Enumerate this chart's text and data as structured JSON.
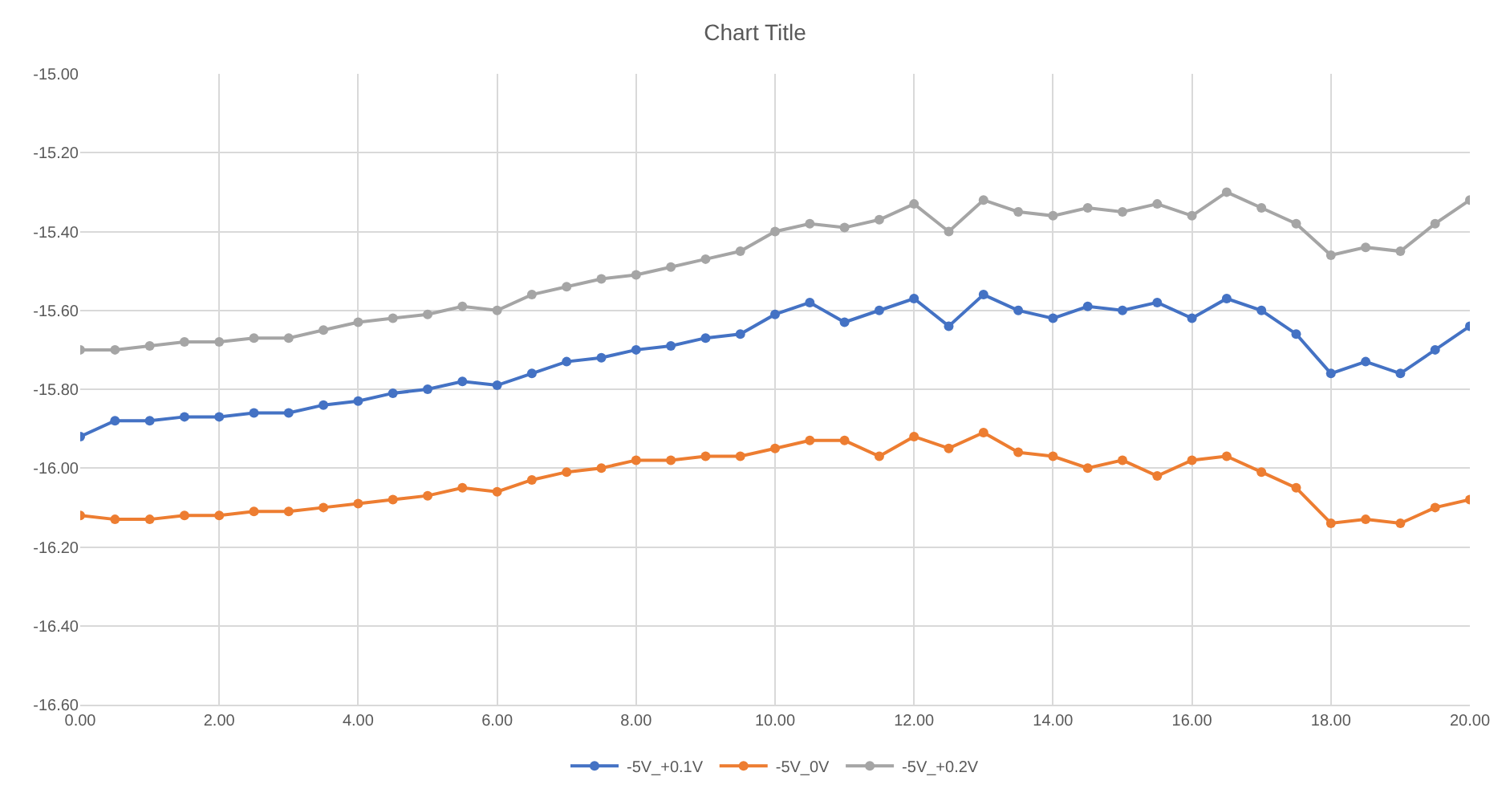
{
  "chart_data": {
    "type": "line",
    "title": "Chart Title",
    "x": [
      0,
      0.5,
      1,
      1.5,
      2,
      2.5,
      3,
      3.5,
      4,
      4.5,
      5,
      5.5,
      6,
      6.5,
      7,
      7.5,
      8,
      8.5,
      9,
      9.5,
      10,
      10.5,
      11,
      11.5,
      12,
      12.5,
      13,
      13.5,
      14,
      14.5,
      15,
      15.5,
      16,
      16.5,
      17,
      17.5,
      18,
      18.5,
      19,
      19.5,
      20
    ],
    "series": [
      {
        "name": "-5V_+0.1V",
        "color": "#4472c4",
        "values": [
          -15.92,
          -15.88,
          -15.88,
          -15.87,
          -15.87,
          -15.86,
          -15.86,
          -15.84,
          -15.83,
          -15.81,
          -15.8,
          -15.78,
          -15.79,
          -15.76,
          -15.73,
          -15.72,
          -15.7,
          -15.69,
          -15.67,
          -15.66,
          -15.61,
          -15.58,
          -15.63,
          -15.6,
          -15.57,
          -15.64,
          -15.56,
          -15.6,
          -15.62,
          -15.59,
          -15.6,
          -15.58,
          -15.62,
          -15.57,
          -15.6,
          -15.66,
          -15.76,
          -15.73,
          -15.76,
          -15.7,
          -15.64
        ]
      },
      {
        "name": "-5V_0V",
        "color": "#ed7d31",
        "values": [
          -16.12,
          -16.13,
          -16.13,
          -16.12,
          -16.12,
          -16.11,
          -16.11,
          -16.1,
          -16.09,
          -16.08,
          -16.07,
          -16.05,
          -16.06,
          -16.03,
          -16.01,
          -16.0,
          -15.98,
          -15.98,
          -15.97,
          -15.97,
          -15.95,
          -15.93,
          -15.93,
          -15.97,
          -15.92,
          -15.95,
          -15.91,
          -15.96,
          -15.97,
          -16.0,
          -15.98,
          -16.02,
          -15.98,
          -15.97,
          -16.01,
          -16.05,
          -16.14,
          -16.13,
          -16.14,
          -16.1,
          -16.08
        ]
      },
      {
        "name": "-5V_+0.2V",
        "color": "#a5a5a5",
        "values": [
          -15.7,
          -15.7,
          -15.69,
          -15.68,
          -15.68,
          -15.67,
          -15.67,
          -15.65,
          -15.63,
          -15.62,
          -15.61,
          -15.59,
          -15.6,
          -15.56,
          -15.54,
          -15.52,
          -15.51,
          -15.49,
          -15.47,
          -15.45,
          -15.4,
          -15.38,
          -15.39,
          -15.37,
          -15.33,
          -15.4,
          -15.32,
          -15.35,
          -15.36,
          -15.34,
          -15.35,
          -15.33,
          -15.36,
          -15.3,
          -15.34,
          -15.38,
          -15.46,
          -15.44,
          -15.45,
          -15.38,
          -15.32
        ]
      }
    ],
    "xlim": [
      0,
      20
    ],
    "xticks": [
      {
        "value": 0,
        "label": "0.00"
      },
      {
        "value": 2,
        "label": "2.00"
      },
      {
        "value": 4,
        "label": "4.00"
      },
      {
        "value": 6,
        "label": "6.00"
      },
      {
        "value": 8,
        "label": "8.00"
      },
      {
        "value": 10,
        "label": "10.00"
      },
      {
        "value": 12,
        "label": "12.00"
      },
      {
        "value": 14,
        "label": "14.00"
      },
      {
        "value": 16,
        "label": "16.00"
      },
      {
        "value": 18,
        "label": "18.00"
      },
      {
        "value": 20,
        "label": "20.00"
      }
    ],
    "ylim": [
      -16.6,
      -15.0
    ],
    "yticks": [
      {
        "value": -16.6,
        "label": "-16.60"
      },
      {
        "value": -16.4,
        "label": "-16.40"
      },
      {
        "value": -16.2,
        "label": "-16.20"
      },
      {
        "value": -16.0,
        "label": "-16.00"
      },
      {
        "value": -15.8,
        "label": "-15.80"
      },
      {
        "value": -15.6,
        "label": "-15.60"
      },
      {
        "value": -15.4,
        "label": "-15.40"
      },
      {
        "value": -15.2,
        "label": "-15.20"
      },
      {
        "value": -15.0,
        "label": "-15.00"
      }
    ],
    "grid": true,
    "legend": "bottom",
    "marker": "circle",
    "line_style": "solid"
  }
}
